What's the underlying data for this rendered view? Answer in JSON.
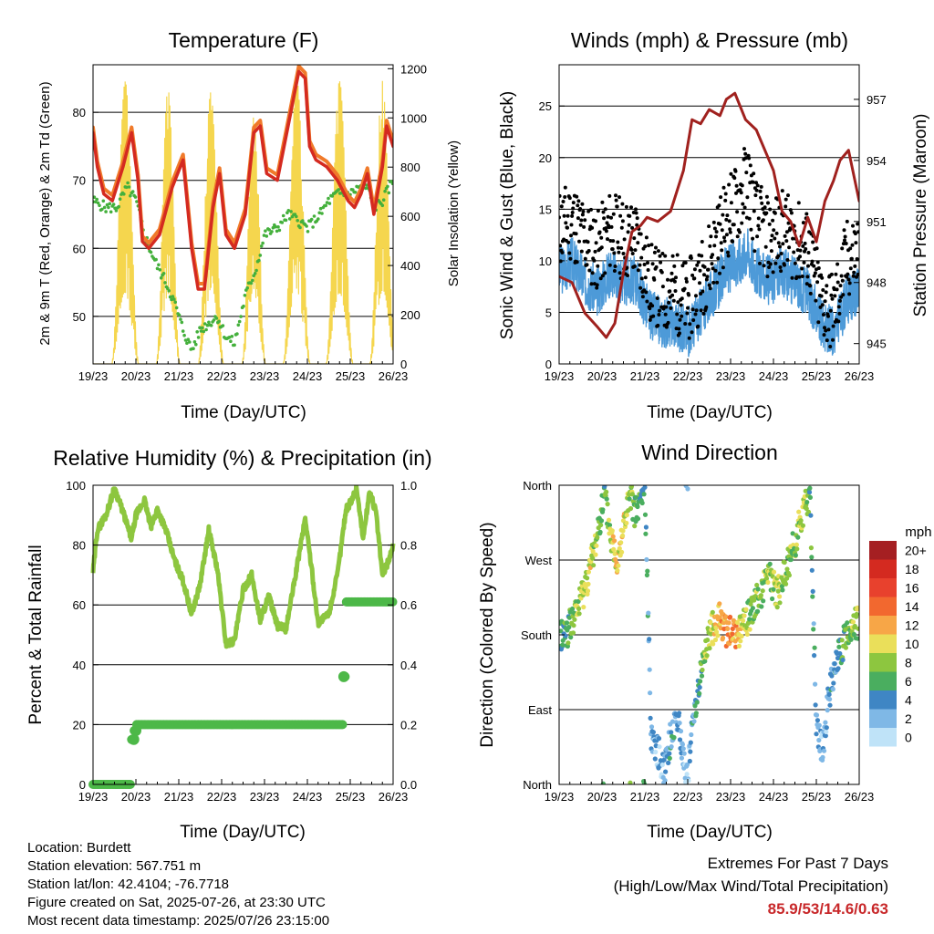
{
  "colors": {
    "red_temp": "#d42a20",
    "orange_temp": "#f07a2a",
    "green_dew": "#44b03c",
    "yellow_solar": "#f5d64e",
    "blue_wind": "#4d9ad8",
    "black_gust": "#000000",
    "maroon_pressure": "#a0211e",
    "rh_green": "#8dc63f",
    "precip_green": "#4db848"
  },
  "time_ticks": [
    "19/23",
    "20/23",
    "21/23",
    "22/23",
    "23/23",
    "24/23",
    "25/23",
    "26/23"
  ],
  "info": {
    "location": "Location: Burdett",
    "elevation": "Station elevation: 567.751 m",
    "latlon": "Station lat/lon: 42.4104; -76.7718",
    "created": "Figure created on Sat, 2025-07-26, at 23:30 UTC",
    "recent": "Most recent data timestamp: 2025/07/26 23:15:00"
  },
  "extremes": {
    "title": "Extremes For Past 7 Days",
    "subtitle": "(High/Low/Max Wind/Total Precipitation)",
    "values": "85.9/53/14.6/0.63"
  },
  "chart_data": [
    {
      "type": "line",
      "title": "Temperature (F)",
      "xlabel": "Time (Day/UTC)",
      "ylabel": "2m & 9m T (Red, Orange) & 2m Td (Green)",
      "y2label": "Solar Insolation (Yellow)",
      "ylim": [
        43,
        87
      ],
      "yticks": [
        50,
        60,
        70,
        80
      ],
      "y2lim": [
        0,
        1216
      ],
      "y2ticks": [
        0,
        200,
        400,
        600,
        800,
        1000,
        1200
      ],
      "xlim": [
        0,
        7
      ],
      "series": [
        {
          "key": "temp",
          "x": [
            0,
            0.1,
            0.25,
            0.45,
            0.7,
            0.9,
            1.05,
            1.15,
            1.3,
            1.55,
            1.85,
            2.1,
            2.3,
            2.45,
            2.6,
            2.8,
            2.95,
            3.1,
            3.3,
            3.55,
            3.75,
            3.9,
            4.05,
            4.3,
            4.55,
            4.8,
            4.95,
            5.05,
            5.2,
            5.45,
            5.7,
            5.95,
            6.1,
            6.25,
            6.4,
            6.55,
            6.75,
            6.85,
            7.0
          ],
          "values": [
            77,
            72,
            68,
            67,
            72,
            77,
            70,
            61,
            60,
            62,
            69,
            73,
            60,
            54,
            54,
            66,
            71,
            62,
            60,
            65,
            77,
            78,
            71,
            70,
            78,
            86,
            85,
            75,
            73,
            72,
            70,
            67,
            66,
            68,
            71,
            65,
            72,
            78,
            75
          ]
        },
        {
          "key": "dew",
          "x": [
            0,
            0.3,
            0.55,
            0.8,
            1.0,
            1.2,
            1.45,
            1.7,
            1.9,
            2.1,
            2.3,
            2.5,
            2.7,
            2.9,
            3.1,
            3.3,
            3.55,
            3.8,
            4.0,
            4.3,
            4.55,
            4.8,
            5.0,
            5.3,
            5.5,
            5.7,
            6.0,
            6.2,
            6.4,
            6.55,
            6.75,
            7.0
          ],
          "values": [
            67,
            66,
            66,
            69,
            67,
            62,
            58,
            55,
            52,
            48,
            45,
            48,
            49,
            50,
            47,
            46,
            53,
            57,
            62,
            63,
            65,
            64,
            63,
            65,
            67,
            68,
            68,
            69,
            69,
            66,
            67,
            70
          ]
        },
        {
          "key": "solar",
          "peaks": [
            {
              "c": 0.75,
              "w": 0.32,
              "v": 1150
            },
            {
              "c": 1.75,
              "w": 0.28,
              "v": 1120
            },
            {
              "c": 2.75,
              "w": 0.3,
              "v": 1130
            },
            {
              "c": 3.75,
              "w": 0.28,
              "v": 1050
            },
            {
              "c": 4.75,
              "w": 0.32,
              "v": 1170
            },
            {
              "c": 5.75,
              "w": 0.32,
              "v": 1150
            },
            {
              "c": 6.75,
              "w": 0.3,
              "v": 1160
            }
          ]
        }
      ]
    },
    {
      "type": "line",
      "title": "Winds (mph) & Pressure (mb)",
      "xlabel": "Time (Day/UTC)",
      "ylabel": "Sonic Wind & Gust (Blue, Black)",
      "y2label": "Station Pressure (Maroon)",
      "ylim": [
        0,
        29
      ],
      "yticks": [
        0,
        5,
        10,
        15,
        20,
        25
      ],
      "y2lim": [
        944.0,
        958.7
      ],
      "y2ticks": [
        945,
        948,
        951,
        954,
        957
      ],
      "xlim": [
        0,
        7
      ],
      "series": [
        {
          "key": "wind",
          "x": [
            0,
            0.3,
            0.6,
            0.9,
            1.2,
            1.5,
            1.8,
            2.1,
            2.4,
            2.7,
            3.0,
            3.3,
            3.6,
            3.9,
            4.2,
            4.4,
            4.6,
            4.9,
            5.2,
            5.5,
            5.8,
            6.1,
            6.4,
            6.7,
            7.0
          ],
          "values": [
            9,
            10,
            8,
            7,
            9,
            8,
            8,
            5,
            4,
            4,
            3,
            5,
            7,
            9,
            10,
            11,
            9,
            8,
            9,
            8,
            7,
            4,
            3,
            6,
            7
          ]
        },
        {
          "key": "gust",
          "x": [
            0,
            0.3,
            0.6,
            0.9,
            1.2,
            1.5,
            1.8,
            2.1,
            2.4,
            2.7,
            3.0,
            3.3,
            3.6,
            3.9,
            4.2,
            4.4,
            4.6,
            4.9,
            5.2,
            5.5,
            5.8,
            6.1,
            6.4,
            6.7,
            7.0
          ],
          "values": [
            13,
            14,
            12,
            11,
            13,
            12,
            12,
            8,
            7,
            7,
            6,
            8,
            11,
            14,
            16,
            18,
            14,
            12,
            13,
            12,
            11,
            6,
            5,
            10,
            11
          ]
        },
        {
          "key": "pressure",
          "x": [
            0,
            0.3,
            0.6,
            0.9,
            1.1,
            1.3,
            1.5,
            1.7,
            1.9,
            2.05,
            2.3,
            2.6,
            2.9,
            3.1,
            3.3,
            3.5,
            3.75,
            3.9,
            4.1,
            4.35,
            4.6,
            4.8,
            5.0,
            5.2,
            5.4,
            5.6,
            5.8,
            6.0,
            6.2,
            6.4,
            6.55,
            6.75,
            7.0
          ],
          "values": [
            948.3,
            948.0,
            946.5,
            945.8,
            945.3,
            946.0,
            948.5,
            950.5,
            950.8,
            951.2,
            951.0,
            951.5,
            953.5,
            956.0,
            955.8,
            956.5,
            956.2,
            957.0,
            957.3,
            956.0,
            955.5,
            954.5,
            953.5,
            951.5,
            951.0,
            949.8,
            951.2,
            950.0,
            952.0,
            953.0,
            954.0,
            954.5,
            952.0
          ]
        }
      ]
    },
    {
      "type": "line",
      "title": "Relative Humidity (%) & Precipitation (in)",
      "xlabel": "Time (Day/UTC)",
      "ylabel": "Percent & Total Rainfall",
      "ylim": [
        0,
        100
      ],
      "yticks": [
        0,
        20,
        40,
        60,
        80,
        100
      ],
      "y2lim": [
        0,
        1.0
      ],
      "y2ticks": [
        "0.0",
        "0.2",
        "0.4",
        "0.6",
        "0.8",
        "1.0"
      ],
      "xlim": [
        0,
        7
      ],
      "series": [
        {
          "key": "rh",
          "x": [
            0,
            0.1,
            0.3,
            0.5,
            0.7,
            0.9,
            1.0,
            1.2,
            1.35,
            1.5,
            1.7,
            1.9,
            2.1,
            2.3,
            2.5,
            2.7,
            2.9,
            3.1,
            3.3,
            3.5,
            3.7,
            3.9,
            4.1,
            4.3,
            4.5,
            4.7,
            4.95,
            5.1,
            5.25,
            5.5,
            5.7,
            5.9,
            6.0,
            6.15,
            6.3,
            6.45,
            6.6,
            6.75,
            6.9,
            7.0
          ],
          "values": [
            71,
            85,
            90,
            99,
            91,
            82,
            90,
            95,
            86,
            92,
            85,
            75,
            68,
            57,
            67,
            85,
            72,
            47,
            48,
            65,
            70,
            55,
            63,
            53,
            52,
            68,
            89,
            72,
            54,
            57,
            70,
            92,
            94,
            99,
            82,
            98,
            91,
            70,
            75,
            80
          ]
        },
        {
          "key": "precip",
          "x": [
            0,
            0.4,
            0.85,
            0.9,
            0.95,
            1.0,
            1.4,
            2.0,
            3.0,
            4.0,
            5.0,
            5.8,
            5.85,
            5.9,
            6.4,
            7.0
          ],
          "values": [
            0.0,
            0.0,
            0.0,
            0.15,
            0.18,
            0.2,
            0.2,
            0.2,
            0.2,
            0.2,
            0.2,
            0.2,
            0.36,
            0.61,
            0.61,
            0.61
          ]
        }
      ]
    },
    {
      "type": "scatter",
      "title": "Wind Direction",
      "xlabel": "Time (Day/UTC)",
      "ylabel": "Direction (Colored By Speed)",
      "ylim": [
        0,
        360
      ],
      "ytick_labels": [
        "North",
        "East",
        "South",
        "West",
        "North"
      ],
      "xlim": [
        0,
        7
      ],
      "legend_title": "mph",
      "legend_labels": [
        "20+",
        "18",
        "16",
        "14",
        "12",
        "10",
        "8",
        "6",
        "4",
        "2",
        "0"
      ],
      "legend_colors": [
        "#a51f22",
        "#d42a20",
        "#e8412d",
        "#f2682f",
        "#f7a647",
        "#eadf5a",
        "#8dc63f",
        "#4aae5f",
        "#3f86c4",
        "#7fb8e6",
        "#bfe3f8"
      ],
      "points": [
        {
          "x": 0.05,
          "y": 180
        },
        {
          "x": 0.2,
          "y": 185
        },
        {
          "x": 0.35,
          "y": 200
        },
        {
          "x": 0.55,
          "y": 230
        },
        {
          "x": 0.7,
          "y": 255
        },
        {
          "x": 0.85,
          "y": 290
        },
        {
          "x": 0.95,
          "y": 320
        },
        {
          "x": 1.05,
          "y": 350
        },
        {
          "x": 1.2,
          "y": 300
        },
        {
          "x": 1.35,
          "y": 270
        },
        {
          "x": 1.5,
          "y": 310
        },
        {
          "x": 1.65,
          "y": 345
        },
        {
          "x": 1.8,
          "y": 325
        },
        {
          "x": 2.0,
          "y": 355
        },
        {
          "x": 2.15,
          "y": 60
        },
        {
          "x": 2.3,
          "y": 40
        },
        {
          "x": 2.45,
          "y": 20
        },
        {
          "x": 2.6,
          "y": 55
        },
        {
          "x": 2.75,
          "y": 85
        },
        {
          "x": 2.9,
          "y": 30
        },
        {
          "x": 3.0,
          "y": 10
        },
        {
          "x": 3.15,
          "y": 90
        },
        {
          "x": 3.3,
          "y": 130
        },
        {
          "x": 3.45,
          "y": 170
        },
        {
          "x": 3.6,
          "y": 190
        },
        {
          "x": 3.75,
          "y": 200
        },
        {
          "x": 3.9,
          "y": 185
        },
        {
          "x": 4.1,
          "y": 180
        },
        {
          "x": 4.3,
          "y": 190
        },
        {
          "x": 4.5,
          "y": 210
        },
        {
          "x": 4.7,
          "y": 230
        },
        {
          "x": 4.9,
          "y": 250
        },
        {
          "x": 5.1,
          "y": 230
        },
        {
          "x": 5.3,
          "y": 260
        },
        {
          "x": 5.5,
          "y": 290
        },
        {
          "x": 5.7,
          "y": 330
        },
        {
          "x": 5.85,
          "y": 350
        },
        {
          "x": 6.0,
          "y": 70
        },
        {
          "x": 6.15,
          "y": 40
        },
        {
          "x": 6.3,
          "y": 110
        },
        {
          "x": 6.5,
          "y": 150
        },
        {
          "x": 6.7,
          "y": 180
        },
        {
          "x": 6.9,
          "y": 195
        }
      ],
      "speeds": [
        5,
        6,
        8,
        9,
        10,
        8,
        7,
        5,
        9,
        11,
        10,
        8,
        6,
        4,
        3,
        2,
        3,
        4,
        3,
        2,
        1,
        4,
        6,
        8,
        10,
        12,
        13,
        12,
        9,
        7,
        8,
        8,
        9,
        7,
        8,
        9,
        6,
        3,
        2,
        3,
        5,
        7,
        8
      ]
    }
  ]
}
